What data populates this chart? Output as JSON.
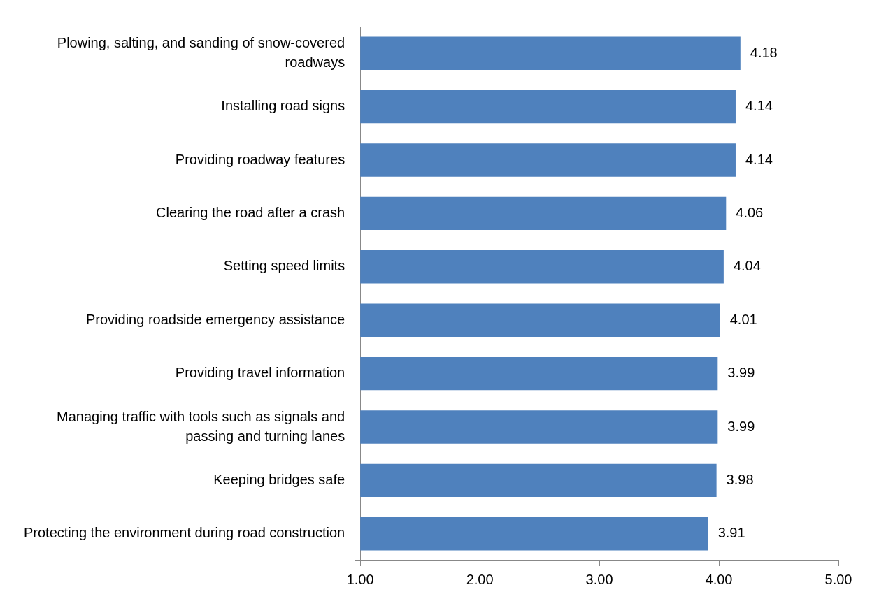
{
  "chart_data": {
    "type": "bar",
    "orientation": "horizontal",
    "categories": [
      "Plowing, salting, and sanding of snow-covered roadways",
      "Installing road signs",
      "Providing roadway features",
      "Clearing the road after a crash",
      "Setting speed limits",
      "Providing roadside emergency assistance",
      "Providing travel information",
      "Managing traffic with tools such as signals and passing and turning lanes",
      "Keeping bridges safe",
      "Protecting the environment during road construction"
    ],
    "values": [
      4.18,
      4.14,
      4.14,
      4.06,
      4.04,
      4.01,
      3.99,
      3.99,
      3.98,
      3.91
    ],
    "color": "#4f81bd",
    "xlim": [
      1,
      5
    ],
    "xticks": [
      {
        "value": 1,
        "label": "1.00"
      },
      {
        "value": 2,
        "label": "2.00"
      },
      {
        "value": 3,
        "label": "3.00"
      },
      {
        "value": 4,
        "label": "4.00"
      },
      {
        "value": 5,
        "label": "5.00"
      }
    ],
    "data_labels": true,
    "grid": false,
    "legend": false
  }
}
